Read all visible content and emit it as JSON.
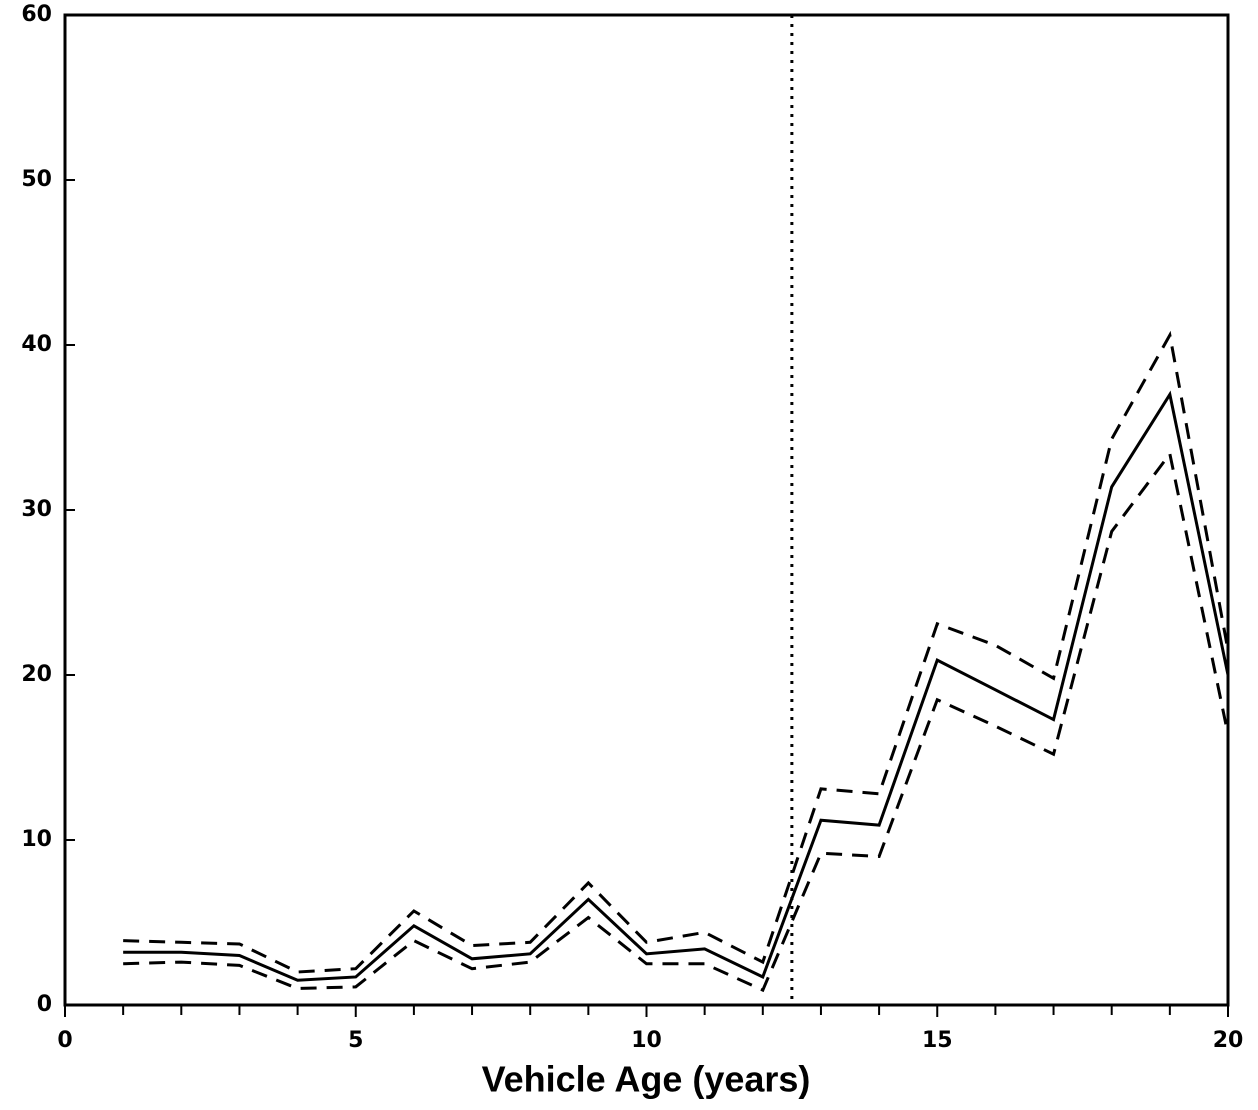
{
  "chart_data": {
    "type": "line",
    "x_label": "Vehicle Age (years)",
    "x": [
      1,
      2,
      3,
      4,
      5,
      6,
      7,
      8,
      9,
      10,
      11,
      12,
      13,
      14,
      15,
      16,
      17,
      18,
      19,
      20
    ],
    "series": [
      {
        "color": "#000000",
        "dash": "solid",
        "values": [
          3.2,
          3.2,
          3.0,
          1.5,
          1.7,
          4.8,
          2.8,
          3.1,
          6.4,
          3.1,
          3.4,
          1.7,
          11.2,
          10.9,
          20.9,
          19.1,
          17.3,
          31.4,
          37.0,
          20.0
        ]
      },
      {
        "color": "#000000",
        "dash": "dashed",
        "values": [
          3.9,
          3.8,
          3.7,
          2.0,
          2.2,
          5.7,
          3.6,
          3.8,
          7.4,
          3.8,
          4.4,
          2.6,
          13.1,
          12.8,
          23.1,
          21.8,
          19.8,
          34.3,
          40.6,
          21.5
        ]
      },
      {
        "color": "#000000",
        "dash": "dashed",
        "values": [
          2.5,
          2.6,
          2.4,
          1.0,
          1.1,
          3.9,
          2.2,
          2.6,
          5.3,
          2.5,
          2.5,
          0.9,
          9.2,
          9.0,
          18.5,
          16.9,
          15.2,
          28.7,
          33.4,
          16.4
        ]
      }
    ],
    "vline": 12.5,
    "xlim": [
      0,
      20
    ],
    "xticks": [
      0,
      5,
      10,
      15,
      20
    ],
    "xticks_minor": [
      1,
      2,
      3,
      4,
      6,
      7,
      8,
      9,
      11,
      12,
      13,
      14,
      16,
      17,
      18,
      19
    ],
    "ylim": [
      0,
      60
    ],
    "yticks": [
      0,
      10,
      20,
      30,
      40,
      50,
      60
    ],
    "grid": false
  }
}
